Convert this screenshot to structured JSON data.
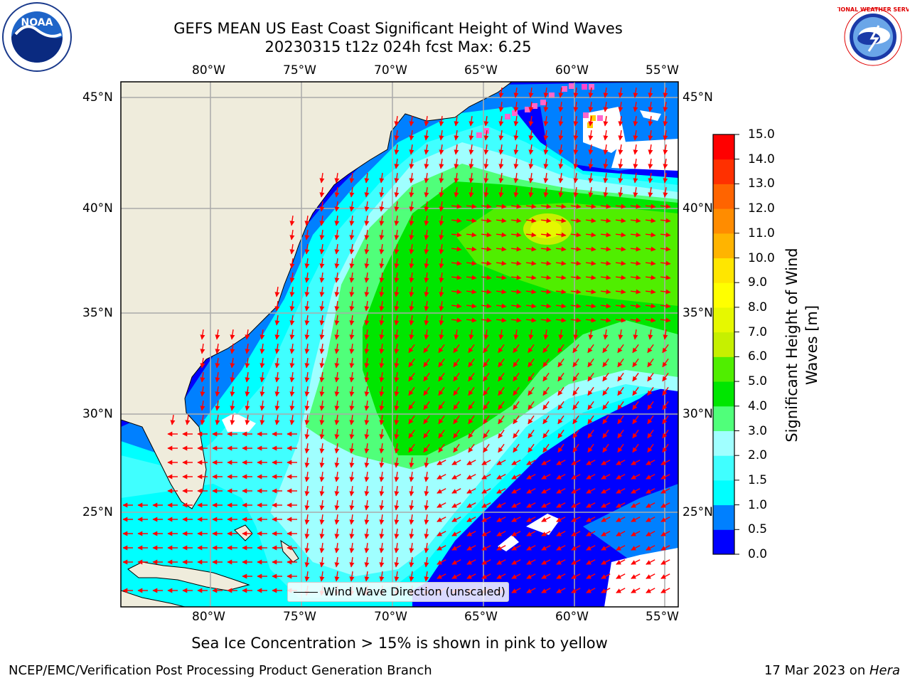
{
  "header": {
    "title_line1": "GEFS MEAN US East Coast Significant Height of Wind Waves",
    "title_line2": "20230315 t12z 024h fcst   Max: 6.25"
  },
  "logos": {
    "left": "noaa-logo",
    "left_text": "NOAA",
    "right": "national-weather-service-logo",
    "right_text": "NATIONAL WEATHER SERVICE"
  },
  "map": {
    "longitude_labels": [
      "80°W",
      "75°W",
      "70°W",
      "65°W",
      "60°W",
      "55°W"
    ],
    "latitude_labels": [
      "45°N",
      "40°N",
      "35°N",
      "30°N",
      "25°N"
    ],
    "legend": "Wind Wave Direction (unscaled)",
    "arrow_color": "#ff0000",
    "land_color": "#efecdc",
    "gridline_color": "#aaaaaa"
  },
  "colorbar": {
    "label": "Significant Height of Wind Waves [m]",
    "ticks": [
      "0.0",
      "0.5",
      "1.0",
      "1.5",
      "2.0",
      "3.0",
      "4.0",
      "5.0",
      "6.0",
      "7.0",
      "8.0",
      "9.0",
      "10.0",
      "11.0",
      "12.0",
      "13.0",
      "14.0",
      "15.0"
    ],
    "colors": [
      "#0000ff",
      "#0080ff",
      "#00ffff",
      "#40ffff",
      "#a0ffff",
      "#50ff7a",
      "#00e600",
      "#50ee00",
      "#c6f000",
      "#e6f800",
      "#ffff00",
      "#ffe600",
      "#ffb400",
      "#ff8c00",
      "#ff6400",
      "#ff3000",
      "#ff0000"
    ]
  },
  "notes": {
    "ice": "Sea Ice Concentration > 15% is shown in pink to yellow",
    "footer_left": "NCEP/EMC/Verification Post Processing Product Generation Branch",
    "footer_date": "17 Mar 2023 on ",
    "footer_host": "Hera"
  }
}
